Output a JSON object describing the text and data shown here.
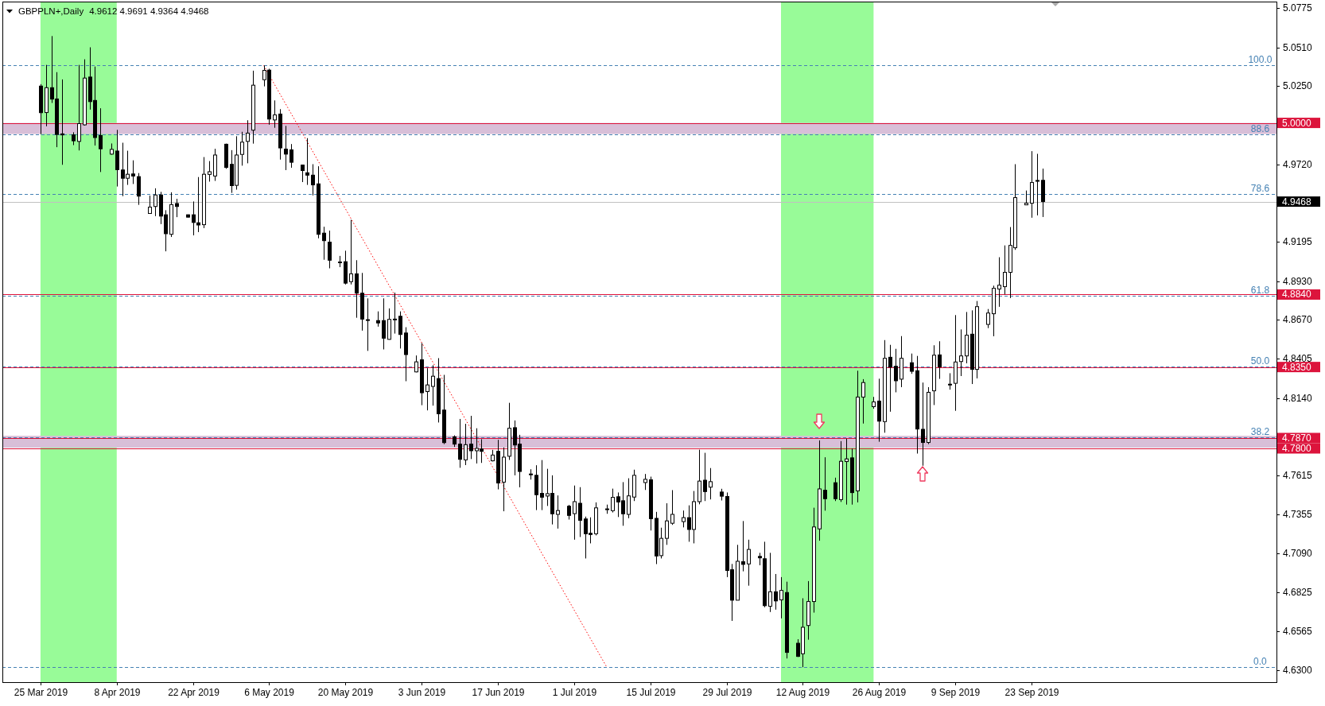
{
  "chart_data": {
    "type": "candlestick",
    "title": "GBPPLN+,Daily",
    "subtitle": "4.9612 4.9691 4.9364 4.9468",
    "x": [
      "2019-03-25",
      "2019-03-26",
      "2019-03-27",
      "2019-03-28",
      "2019-03-29",
      "2019-03-31",
      "2019-04-01",
      "2019-04-02",
      "2019-04-03",
      "2019-04-04",
      "2019-04-05",
      "2019-04-07",
      "2019-04-08",
      "2019-04-09",
      "2019-04-10",
      "2019-04-11",
      "2019-04-12",
      "2019-04-14",
      "2019-04-15",
      "2019-04-16",
      "2019-04-17",
      "2019-04-18",
      "2019-04-19",
      "2019-04-21",
      "2019-04-22",
      "2019-04-23",
      "2019-04-24",
      "2019-04-25",
      "2019-04-26",
      "2019-04-28",
      "2019-04-29",
      "2019-04-30",
      "2019-05-01",
      "2019-05-02",
      "2019-05-03",
      "2019-05-05",
      "2019-05-06",
      "2019-05-07",
      "2019-05-08",
      "2019-05-09",
      "2019-05-10",
      "2019-05-12",
      "2019-05-13",
      "2019-05-14",
      "2019-05-15",
      "2019-05-16",
      "2019-05-17",
      "2019-05-19",
      "2019-05-20",
      "2019-05-21",
      "2019-05-22",
      "2019-05-23",
      "2019-05-24",
      "2019-05-26",
      "2019-05-27",
      "2019-05-28",
      "2019-05-29",
      "2019-05-30",
      "2019-05-31",
      "2019-06-02",
      "2019-06-03",
      "2019-06-04",
      "2019-06-05",
      "2019-06-06",
      "2019-06-07",
      "2019-06-09",
      "2019-06-10",
      "2019-06-11",
      "2019-06-12",
      "2019-06-13",
      "2019-06-14",
      "2019-06-16",
      "2019-06-17",
      "2019-06-18",
      "2019-06-19",
      "2019-06-20",
      "2019-06-21",
      "2019-06-23",
      "2019-06-24",
      "2019-06-25",
      "2019-06-26",
      "2019-06-27",
      "2019-06-28",
      "2019-06-30",
      "2019-07-01",
      "2019-07-02",
      "2019-07-03",
      "2019-07-04",
      "2019-07-05",
      "2019-07-07",
      "2019-07-08",
      "2019-07-09",
      "2019-07-10",
      "2019-07-11",
      "2019-07-12",
      "2019-07-14",
      "2019-07-15",
      "2019-07-16",
      "2019-07-17",
      "2019-07-18",
      "2019-07-19",
      "2019-07-21",
      "2019-07-22",
      "2019-07-23",
      "2019-07-24",
      "2019-07-25",
      "2019-07-26",
      "2019-07-28",
      "2019-07-29",
      "2019-07-30",
      "2019-07-31",
      "2019-08-01",
      "2019-08-02",
      "2019-08-04",
      "2019-08-05",
      "2019-08-06",
      "2019-08-07",
      "2019-08-08",
      "2019-08-09",
      "2019-08-11",
      "2019-08-12",
      "2019-08-13",
      "2019-08-14",
      "2019-08-15",
      "2019-08-16",
      "2019-08-18",
      "2019-08-19",
      "2019-08-20",
      "2019-08-21",
      "2019-08-22",
      "2019-08-23",
      "2019-08-25",
      "2019-08-26",
      "2019-08-27",
      "2019-08-28",
      "2019-08-29",
      "2019-08-30",
      "2019-09-01",
      "2019-09-02",
      "2019-09-03",
      "2019-09-04",
      "2019-09-05",
      "2019-09-06",
      "2019-09-08",
      "2019-09-09",
      "2019-09-10",
      "2019-09-11",
      "2019-09-12",
      "2019-09-13",
      "2019-09-15",
      "2019-09-16",
      "2019-09-17",
      "2019-09-18",
      "2019-09-19",
      "2019-09-20",
      "2019-09-22",
      "2019-09-23",
      "2019-09-24",
      "2019-09-25"
    ],
    "ohlc": [
      [
        5.0249,
        5.0262,
        4.9924,
        5.0069
      ],
      [
        5.007,
        5.0392,
        4.9977,
        5.0238
      ],
      [
        5.0238,
        5.0587,
        5.0135,
        5.0161
      ],
      [
        5.0162,
        5.0343,
        4.9836,
        4.9922
      ],
      [
        4.9926,
        5.0294,
        4.9717,
        4.9919
      ],
      [
        4.9919,
        4.9937,
        4.985,
        4.9879
      ],
      [
        4.9875,
        5.0392,
        4.9814,
        4.9995
      ],
      [
        4.9987,
        5.043,
        4.9982,
        5.0303
      ],
      [
        5.031,
        5.0511,
        5.009,
        5.0144
      ],
      [
        5.0152,
        5.0381,
        4.9847,
        4.9901
      ],
      [
        4.9915,
        5.0099,
        4.9668,
        4.9825
      ],
      [
        4.9789,
        4.9861,
        4.9785,
        4.9821
      ],
      [
        4.981,
        4.9953,
        4.957,
        4.9684
      ],
      [
        4.9682,
        4.9866,
        4.9505,
        4.9626
      ],
      [
        4.9626,
        4.9812,
        4.9581,
        4.9653
      ],
      [
        4.9655,
        4.9747,
        4.9587,
        4.9641
      ],
      [
        4.9637,
        4.9661,
        4.9446,
        4.9505
      ],
      [
        4.9388,
        4.9509,
        4.9385,
        4.9431
      ],
      [
        4.9435,
        4.9558,
        4.937,
        4.9513
      ],
      [
        4.9513,
        4.9534,
        4.9316,
        4.937
      ],
      [
        4.9379,
        4.941,
        4.9132,
        4.9251
      ],
      [
        4.9247,
        4.9531,
        4.9229,
        4.9448
      ],
      [
        4.9455,
        4.9487,
        4.9363,
        4.9435
      ],
      [
        4.9379,
        4.9381,
        4.9361,
        4.9363
      ],
      [
        4.9379,
        4.9469,
        4.924,
        4.9327
      ],
      [
        4.9325,
        4.9634,
        4.9262,
        4.931
      ],
      [
        4.9312,
        4.9769,
        4.9289,
        4.9653
      ],
      [
        4.9652,
        4.9742,
        4.9603,
        4.967
      ],
      [
        4.9641,
        4.9825,
        4.9608,
        4.9783
      ],
      [
        4.9856,
        4.986,
        4.969,
        4.9699
      ],
      [
        4.972,
        4.9816,
        4.9527,
        4.9576
      ],
      [
        4.9578,
        4.991,
        4.9549,
        4.9783
      ],
      [
        4.9787,
        4.994,
        4.9711,
        4.987
      ],
      [
        4.9875,
        5.0018,
        4.9727,
        4.9931
      ],
      [
        4.9951,
        5.0353,
        4.986,
        5.0255
      ],
      [
        5.0292,
        5.0388,
        5.0247,
        5.0355
      ],
      [
        5.0357,
        5.0366,
        4.9988,
        5.0026
      ],
      [
        5.002,
        5.0152,
        4.9967,
        5.0054
      ],
      [
        5.006,
        5.0093,
        4.9752,
        4.9831
      ],
      [
        4.9823,
        4.998,
        4.9681,
        4.9789
      ],
      [
        4.9818,
        4.9857,
        4.9697,
        4.9734
      ],
      [
        4.9715,
        4.9718,
        4.96,
        4.9678
      ],
      [
        4.9663,
        4.9897,
        4.9581,
        4.9647
      ],
      [
        4.9647,
        4.9721,
        4.951,
        4.9581
      ],
      [
        4.9588,
        4.9707,
        4.922,
        4.9247
      ],
      [
        4.9255,
        4.9298,
        4.9075,
        4.9204
      ],
      [
        4.9194,
        4.9272,
        4.9017,
        4.9072
      ],
      [
        4.906,
        4.9101,
        4.9025,
        4.9056
      ],
      [
        4.9062,
        4.9136,
        4.8908,
        4.8917
      ],
      [
        4.8927,
        4.9345,
        4.8908,
        4.898
      ],
      [
        4.898,
        4.9072,
        4.8683,
        4.8849
      ],
      [
        4.8849,
        4.8986,
        4.8596,
        4.8674
      ],
      [
        4.867,
        4.8814,
        4.8459,
        4.8668
      ],
      [
        4.8664,
        4.8726,
        4.8623,
        4.8648
      ],
      [
        4.8664,
        4.8814,
        4.8469,
        4.8545
      ],
      [
        4.8537,
        4.8746,
        4.8535,
        4.8672
      ],
      [
        4.8672,
        4.8853,
        4.8576,
        4.8674
      ],
      [
        4.8693,
        4.8726,
        4.8475,
        4.857
      ],
      [
        4.858,
        4.8619,
        4.8254,
        4.8434
      ],
      [
        4.8317,
        4.8428,
        4.8314,
        4.8385
      ],
      [
        4.8399,
        4.8512,
        4.8092,
        4.8176
      ],
      [
        4.8184,
        4.8342,
        4.8057,
        4.8229
      ],
      [
        4.8219,
        4.8362,
        4.8089,
        4.8288
      ],
      [
        4.8272,
        4.841,
        4.7975,
        4.8034
      ],
      [
        4.8059,
        4.8297,
        4.7829,
        4.7839
      ],
      [
        4.7878,
        4.7888,
        4.781,
        4.7829
      ],
      [
        4.7829,
        4.7999,
        4.7669,
        4.7726
      ],
      [
        4.7722,
        4.7966,
        4.7687,
        4.7825
      ],
      [
        4.7829,
        4.802,
        4.7728,
        4.7784
      ],
      [
        4.7784,
        4.7936,
        4.7698,
        4.78
      ],
      [
        4.7796,
        4.7862,
        4.7702,
        4.778
      ],
      [
        4.7716,
        4.779,
        4.7712,
        4.7755
      ],
      [
        4.778,
        4.7858,
        4.7523,
        4.7566
      ],
      [
        4.7572,
        4.7806,
        4.7375,
        4.7741
      ],
      [
        4.7747,
        4.8108,
        4.7722,
        4.7936
      ],
      [
        4.794,
        4.7989,
        4.7618,
        4.7823
      ],
      [
        4.7829,
        4.7892,
        4.7537,
        4.7644
      ],
      [
        4.7627,
        4.7659,
        4.7589,
        4.7623
      ],
      [
        4.7618,
        4.7686,
        4.7383,
        4.7487
      ],
      [
        4.7496,
        4.7721,
        4.7383,
        4.747
      ],
      [
        4.7478,
        4.7662,
        4.7411,
        4.7494
      ],
      [
        4.7496,
        4.7618,
        4.7286,
        4.7358
      ],
      [
        4.7354,
        4.7482,
        4.7258,
        4.738
      ],
      [
        4.7409,
        4.7418,
        4.7319,
        4.7347
      ],
      [
        4.7359,
        4.7549,
        4.7183,
        4.744
      ],
      [
        4.7429,
        4.7538,
        4.7201,
        4.7314
      ],
      [
        4.7323,
        4.7339,
        4.7056,
        4.7223
      ],
      [
        4.7226,
        4.7334,
        4.7158,
        4.7218
      ],
      [
        4.7223,
        4.7435,
        4.7212,
        4.7398
      ],
      [
        4.7388,
        4.742,
        4.7358,
        4.7391
      ],
      [
        4.7379,
        4.7528,
        4.7367,
        4.7469
      ],
      [
        4.7473,
        4.7502,
        4.7336,
        4.7438
      ],
      [
        4.7446,
        4.7572,
        4.7277,
        4.7358
      ],
      [
        4.7354,
        4.7598,
        4.7328,
        4.7479
      ],
      [
        4.7471,
        4.7656,
        4.7444,
        4.7618
      ],
      [
        4.7569,
        4.7627,
        4.7519,
        4.7591
      ],
      [
        4.7588,
        4.7609,
        4.7245,
        4.7325
      ],
      [
        4.7327,
        4.7371,
        4.7018,
        4.7073
      ],
      [
        4.7075,
        4.7264,
        4.7056,
        4.7192
      ],
      [
        4.7192,
        4.7429,
        4.7148,
        4.731
      ],
      [
        4.7294,
        4.7518,
        4.7283,
        4.7354
      ],
      [
        4.7305,
        4.738,
        4.7266,
        4.7332
      ],
      [
        4.7332,
        4.7415,
        4.7169,
        4.7252
      ],
      [
        4.7252,
        4.7512,
        4.7158,
        4.744
      ],
      [
        4.744,
        4.7791,
        4.7422,
        4.7579
      ],
      [
        4.7585,
        4.777,
        4.7444,
        4.7508
      ],
      [
        4.7538,
        4.7667,
        4.7455,
        4.7575
      ],
      [
        4.7505,
        4.7527,
        4.7448,
        4.7477
      ],
      [
        4.7475,
        4.7502,
        4.693,
        4.6975
      ],
      [
        4.698,
        4.7019,
        4.6634,
        4.6774
      ],
      [
        4.6774,
        4.7148,
        4.6774,
        4.7037
      ],
      [
        4.7034,
        4.7309,
        4.6969,
        4.7016
      ],
      [
        4.7019,
        4.7183,
        4.6872,
        4.7117
      ],
      [
        4.707,
        4.7094,
        4.701,
        4.706
      ],
      [
        4.7054,
        4.7169,
        4.6726,
        4.6737
      ],
      [
        4.6733,
        4.7094,
        4.6694,
        4.6831
      ],
      [
        4.6831,
        4.6951,
        4.671,
        4.6769
      ],
      [
        4.6776,
        4.693,
        4.6651,
        4.684
      ],
      [
        4.6826,
        4.6899,
        4.638,
        4.6421
      ],
      [
        4.6483,
        4.651,
        4.639,
        4.6394
      ],
      [
        4.6412,
        4.6787,
        4.6321,
        4.6591
      ],
      [
        4.6603,
        4.6903,
        4.6507,
        4.6765
      ],
      [
        4.6765,
        4.7399,
        4.669,
        4.7269
      ],
      [
        4.7256,
        4.7854,
        4.7176,
        4.7526
      ],
      [
        4.7517,
        4.774,
        4.7379,
        4.746
      ],
      [
        4.7568,
        4.7602,
        4.7444,
        4.746
      ],
      [
        4.7454,
        4.7849,
        4.7438,
        4.7713
      ],
      [
        4.7711,
        4.7866,
        4.742,
        4.7729
      ],
      [
        4.7736,
        4.7799,
        4.742,
        4.7501
      ],
      [
        4.7513,
        4.8325,
        4.7435,
        4.8147
      ],
      [
        4.8147,
        4.8268,
        4.7968,
        4.8245
      ],
      [
        4.8082,
        4.8148,
        4.8068,
        4.8114
      ],
      [
        4.812,
        4.8271,
        4.7845,
        4.7984
      ],
      [
        4.7981,
        4.8532,
        4.7906,
        4.8409
      ],
      [
        4.8416,
        4.85,
        4.8048,
        4.835
      ],
      [
        4.8355,
        4.8473,
        4.8179,
        4.8257
      ],
      [
        4.8268,
        4.8559,
        4.8214,
        4.8409
      ],
      [
        4.8379,
        4.8441,
        4.8304,
        4.8321
      ],
      [
        4.8325,
        4.8425,
        4.7765,
        4.7931
      ],
      [
        4.7929,
        4.8245,
        4.7683,
        4.784
      ],
      [
        4.784,
        4.8214,
        4.7829,
        4.8179
      ],
      [
        4.8189,
        4.8497,
        4.8093,
        4.843
      ],
      [
        4.8432,
        4.8524,
        4.827,
        4.8351
      ],
      [
        4.8234,
        4.8308,
        4.8197,
        4.8231
      ],
      [
        4.824,
        4.8701,
        4.8054,
        4.8384
      ],
      [
        4.8387,
        4.8604,
        4.8289,
        4.8425
      ],
      [
        4.8425,
        4.8722,
        4.8375,
        4.8565
      ],
      [
        4.8572,
        4.8733,
        4.8235,
        4.8334
      ],
      [
        4.8334,
        4.8796,
        4.8273,
        4.8758
      ],
      [
        4.8638,
        4.8742,
        4.8613,
        4.8715
      ],
      [
        4.871,
        4.89,
        4.8558,
        4.8882
      ],
      [
        4.8877,
        4.9092,
        4.8757,
        4.8903
      ],
      [
        4.8893,
        4.9172,
        4.8841,
        4.899
      ],
      [
        4.899,
        4.9296,
        4.8816,
        4.9172
      ],
      [
        4.9156,
        4.9721,
        4.9142,
        4.9495
      ],
      [
        4.9446,
        4.9543,
        4.9446,
        4.9457
      ],
      [
        4.9457,
        4.9809,
        4.9359,
        4.9597
      ],
      [
        4.9611,
        4.9791,
        4.9375,
        4.9608
      ],
      [
        4.9612,
        4.9691,
        4.9364,
        4.9468
      ]
    ],
    "series": [
      {
        "type": "line",
        "x": [
          "2019-05-05",
          "2019-07-07"
        ],
        "values": [
          5.0388,
          4.6321
        ],
        "color": "#ff0000",
        "line_style": "dotted"
      }
    ],
    "xlim": [
      "2019-03-18",
      "2019-11-07"
    ],
    "xticks": [
      {
        "value": "2019-03-25",
        "label": "25 Mar 2019"
      },
      {
        "value": "2019-04-08",
        "label": "8 Apr 2019"
      },
      {
        "value": "2019-04-22",
        "label": "22 Apr 2019"
      },
      {
        "value": "2019-05-06",
        "label": "6 May 2019"
      },
      {
        "value": "2019-05-20",
        "label": "20 May 2019"
      },
      {
        "value": "2019-06-03",
        "label": "3 Jun 2019"
      },
      {
        "value": "2019-06-17",
        "label": "17 Jun 2019"
      },
      {
        "value": "2019-07-01",
        "label": "1 Jul 2019"
      },
      {
        "value": "2019-07-15",
        "label": "15 Jul 2019"
      },
      {
        "value": "2019-07-29",
        "label": "29 Jul 2019"
      },
      {
        "value": "2019-08-12",
        "label": "12 Aug 2019"
      },
      {
        "value": "2019-08-26",
        "label": "26 Aug 2019"
      },
      {
        "value": "2019-09-09",
        "label": "9 Sep 2019"
      },
      {
        "value": "2019-09-23",
        "label": "23 Sep 2019"
      }
    ],
    "ylim": [
      4.622,
      5.082
    ],
    "yticks": [
      5.0775,
      {
        "value": 5.051,
        "label": "5.0510"
      },
      {
        "value": 5.025,
        "label": "5.0250"
      },
      {
        "value": 4.972,
        "label": "4.9720"
      },
      4.9195,
      {
        "value": 4.893,
        "label": "4.8930"
      },
      {
        "value": 4.867,
        "label": "4.8670"
      },
      4.8405,
      {
        "value": 4.814,
        "label": "4.8140"
      },
      4.7615,
      4.7355,
      {
        "value": 4.709,
        "label": "4.7090"
      },
      4.6825,
      4.6565,
      {
        "value": 4.63,
        "label": "4.6300"
      }
    ],
    "bands": [
      {
        "axis": "x",
        "from": "2019-03-25",
        "to": "2019-04-08",
        "color": "#98fb98"
      },
      {
        "axis": "x",
        "from": "2019-08-08",
        "to": "2019-08-25",
        "color": "#98fb98"
      },
      {
        "axis": "y",
        "from": 4.9925,
        "to": 5.0,
        "color": "#d8bfd8"
      },
      {
        "axis": "y",
        "from": 4.7805,
        "to": 4.7885,
        "color": "#d8bfd8"
      }
    ],
    "ref_lines": [
      {
        "axis": "y",
        "value": 5.0,
        "label": "5.0000",
        "color": "#dc143c"
      },
      {
        "axis": "y",
        "value": 4.9468,
        "label": "4.9468",
        "color": "#c0c0c0"
      },
      {
        "axis": "y",
        "value": 4.884,
        "label": "4.8840",
        "color": "#dc143c"
      },
      {
        "axis": "y",
        "value": 4.835,
        "label": "4.8350",
        "color": "#dc143c"
      },
      {
        "axis": "y",
        "value": 4.787,
        "label": "4.7870",
        "color": "#dc143c"
      },
      {
        "axis": "y",
        "value": 4.78,
        "label": "4.7800",
        "color": "#dc143c"
      },
      {
        "axis": "y",
        "value": 5.0388,
        "color": "#4682b4",
        "line_style": "dashed"
      },
      {
        "axis": "y",
        "value": 4.9924,
        "color": "#4682b4",
        "line_style": "dashed"
      },
      {
        "axis": "y",
        "value": 4.9518,
        "color": "#4682b4",
        "line_style": "dashed"
      },
      {
        "axis": "y",
        "value": 4.8834,
        "color": "#4682b4",
        "line_style": "dashed"
      },
      {
        "axis": "y",
        "value": 4.8355,
        "color": "#4682b4",
        "line_style": "dashed"
      },
      {
        "axis": "y",
        "value": 4.7875,
        "color": "#4682b4",
        "line_style": "dashed"
      },
      {
        "axis": "y",
        "value": 4.6321,
        "color": "#4682b4",
        "line_style": "dashed"
      }
    ],
    "annotations": [
      {
        "text": "100.0",
        "x": "2019-11-04",
        "y": 5.0388
      },
      {
        "text": "88.6",
        "x": "2019-11-04",
        "y": 4.9924
      },
      {
        "text": "78.6",
        "x": "2019-11-04",
        "y": 4.9518
      },
      {
        "text": "61.8",
        "x": "2019-11-04",
        "y": 4.8834
      },
      {
        "text": "50.0",
        "x": "2019-11-04",
        "y": 4.8355
      },
      {
        "text": "38.2",
        "x": "2019-11-04",
        "y": 4.7875
      },
      {
        "text": "0.0",
        "x": "2019-11-04",
        "y": 4.6321
      }
    ]
  }
}
